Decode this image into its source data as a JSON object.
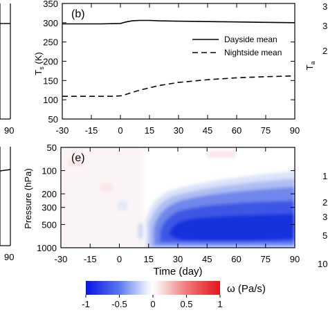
{
  "chart_data": [
    {
      "type": "line",
      "panel_label": "(b)",
      "xlim": [
        -30,
        90
      ],
      "ylim": [
        50,
        350
      ],
      "x_ticks": [
        "-30",
        "-15",
        "0",
        "15",
        "30",
        "45",
        "60",
        "75",
        "90"
      ],
      "y_ticks": [
        "50",
        "100",
        "150",
        "200",
        "250",
        "300",
        "350"
      ],
      "ylabel_main": "T",
      "ylabel_sub": "s",
      "ylabel_unit": " (K)",
      "legend_position": "right",
      "series": [
        {
          "name": "Dayside mean",
          "style": "solid",
          "x": [
            -30,
            -10,
            0,
            3,
            6,
            10,
            15,
            20,
            30,
            45,
            60,
            75,
            90
          ],
          "y": [
            297,
            297,
            298,
            302,
            305,
            306,
            306,
            305,
            304,
            303,
            302,
            301,
            300
          ]
        },
        {
          "name": "Nightside mean",
          "style": "dashed",
          "x": [
            -30,
            -15,
            -5,
            0,
            3,
            6,
            10,
            15,
            20,
            30,
            45,
            60,
            75,
            90
          ],
          "y": [
            109,
            109,
            109,
            110,
            114,
            119,
            125,
            131,
            137,
            145,
            152,
            157,
            160,
            162
          ]
        }
      ]
    },
    {
      "type": "heatmap",
      "panel_label": "(e)",
      "xlabel": "Time (day)",
      "ylabel": "Pressure (hPa)",
      "xlim": [
        -30,
        90
      ],
      "ylim": [
        1000,
        50
      ],
      "y_scale": "log",
      "x_ticks": [
        "-30",
        "-15",
        "0",
        "15",
        "30",
        "45",
        "60",
        "75",
        "90"
      ],
      "y_ticks": [
        "50",
        "100",
        "200",
        "300",
        "500",
        "1000"
      ],
      "colorbar": {
        "label": "ω (Pa/s)",
        "ticks": [
          "-1",
          "-0.5",
          "0",
          "0.5",
          "1"
        ],
        "range": [
          -1,
          1
        ]
      },
      "field_description_values": {
        "before_day_15": 0,
        "descending_region_start_day": 15,
        "core_pressure_hPa": 400,
        "core_value": -0.85,
        "upper_boundary_hPa_at_day_90": 120
      }
    }
  ],
  "left_partial_panels": {
    "top_x_tick": "90",
    "bottom_x_tick": "90"
  },
  "right_partial_panels": {
    "top_ylabel_main": "T",
    "top_ylabel_sub": "a",
    "top_tick_fragments": [
      "3",
      "3",
      "2"
    ],
    "bottom_tick_fragments": [
      "1",
      "2",
      "3",
      "5",
      "10"
    ]
  },
  "colors": {
    "colorbar_neg": "#0a14e6",
    "colorbar_pos": "#e61414",
    "field_core": "#1530e0"
  }
}
